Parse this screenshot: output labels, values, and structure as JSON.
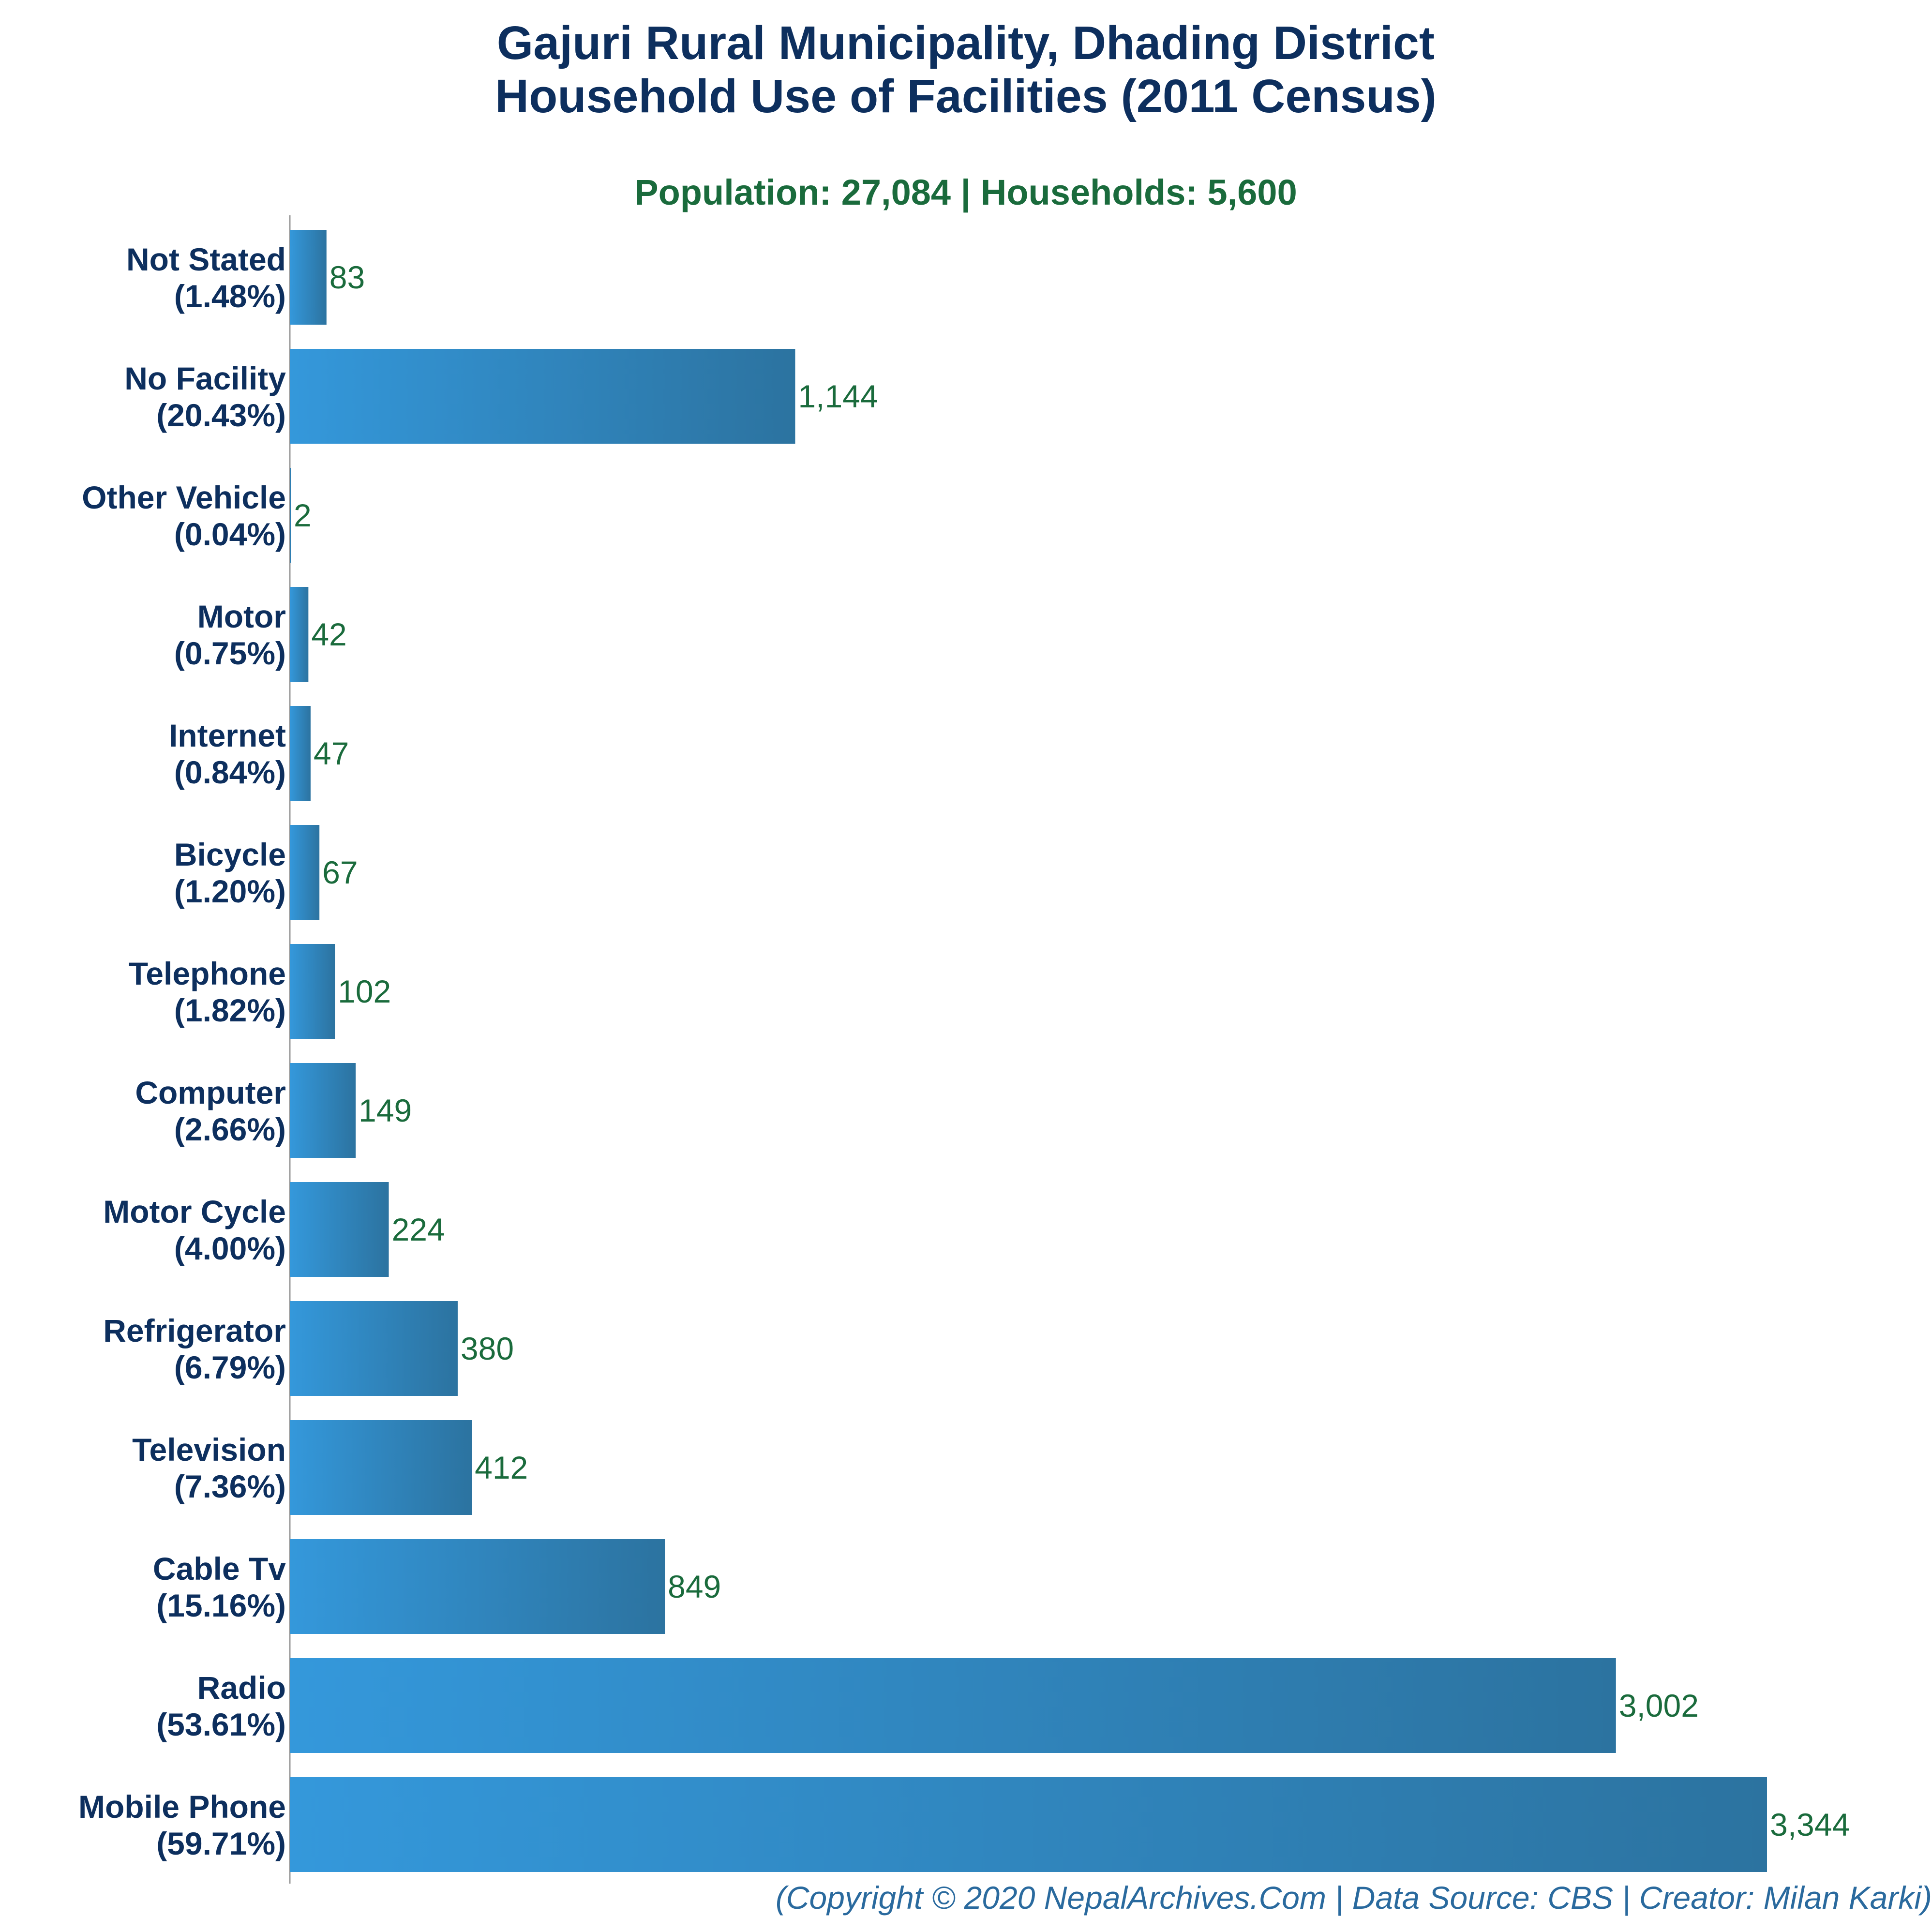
{
  "chart_data": {
    "type": "bar",
    "orientation": "horizontal",
    "title": [
      "Gajuri Rural Municipality, Dhading District",
      "Household Use of Facilities (2011 Census)"
    ],
    "subtitle": "Population: 27,084 | Households: 5,600",
    "footer": "(Copyright © 2020 NepalArchives.Com | Data Source: CBS | Creator: Milan Karki)",
    "categories": [
      {
        "name": "Not Stated",
        "percent": "(1.48%)",
        "value": 83,
        "value_label": "83"
      },
      {
        "name": "No Facility",
        "percent": "(20.43%)",
        "value": 1144,
        "value_label": "1,144"
      },
      {
        "name": "Other Vehicle",
        "percent": "(0.04%)",
        "value": 2,
        "value_label": "2"
      },
      {
        "name": "Motor",
        "percent": "(0.75%)",
        "value": 42,
        "value_label": "42"
      },
      {
        "name": "Internet",
        "percent": "(0.84%)",
        "value": 47,
        "value_label": "47"
      },
      {
        "name": "Bicycle",
        "percent": "(1.20%)",
        "value": 67,
        "value_label": "67"
      },
      {
        "name": "Telephone",
        "percent": "(1.82%)",
        "value": 102,
        "value_label": "102"
      },
      {
        "name": "Computer",
        "percent": "(2.66%)",
        "value": 149,
        "value_label": "149"
      },
      {
        "name": "Motor Cycle",
        "percent": "(4.00%)",
        "value": 224,
        "value_label": "224"
      },
      {
        "name": "Refrigerator",
        "percent": "(6.79%)",
        "value": 380,
        "value_label": "380"
      },
      {
        "name": "Television",
        "percent": "(7.36%)",
        "value": 412,
        "value_label": "412"
      },
      {
        "name": "Cable Tv",
        "percent": "(15.16%)",
        "value": 849,
        "value_label": "849"
      },
      {
        "name": "Radio",
        "percent": "(53.61%)",
        "value": 3002,
        "value_label": "3,002"
      },
      {
        "name": "Mobile Phone",
        "percent": "(59.71%)",
        "value": 3344,
        "value_label": "3,344"
      }
    ],
    "xlim": [
      0,
      3344
    ],
    "grid": false,
    "legend": "none",
    "colors": {
      "bar_start": "#3498db",
      "bar_end": "#2c73a0",
      "title": "#0d2f5e",
      "subtitle": "#1a6b3c",
      "value_text": "#1a6b3c",
      "footer": "#2a6a9e",
      "axis": "#999999"
    }
  }
}
